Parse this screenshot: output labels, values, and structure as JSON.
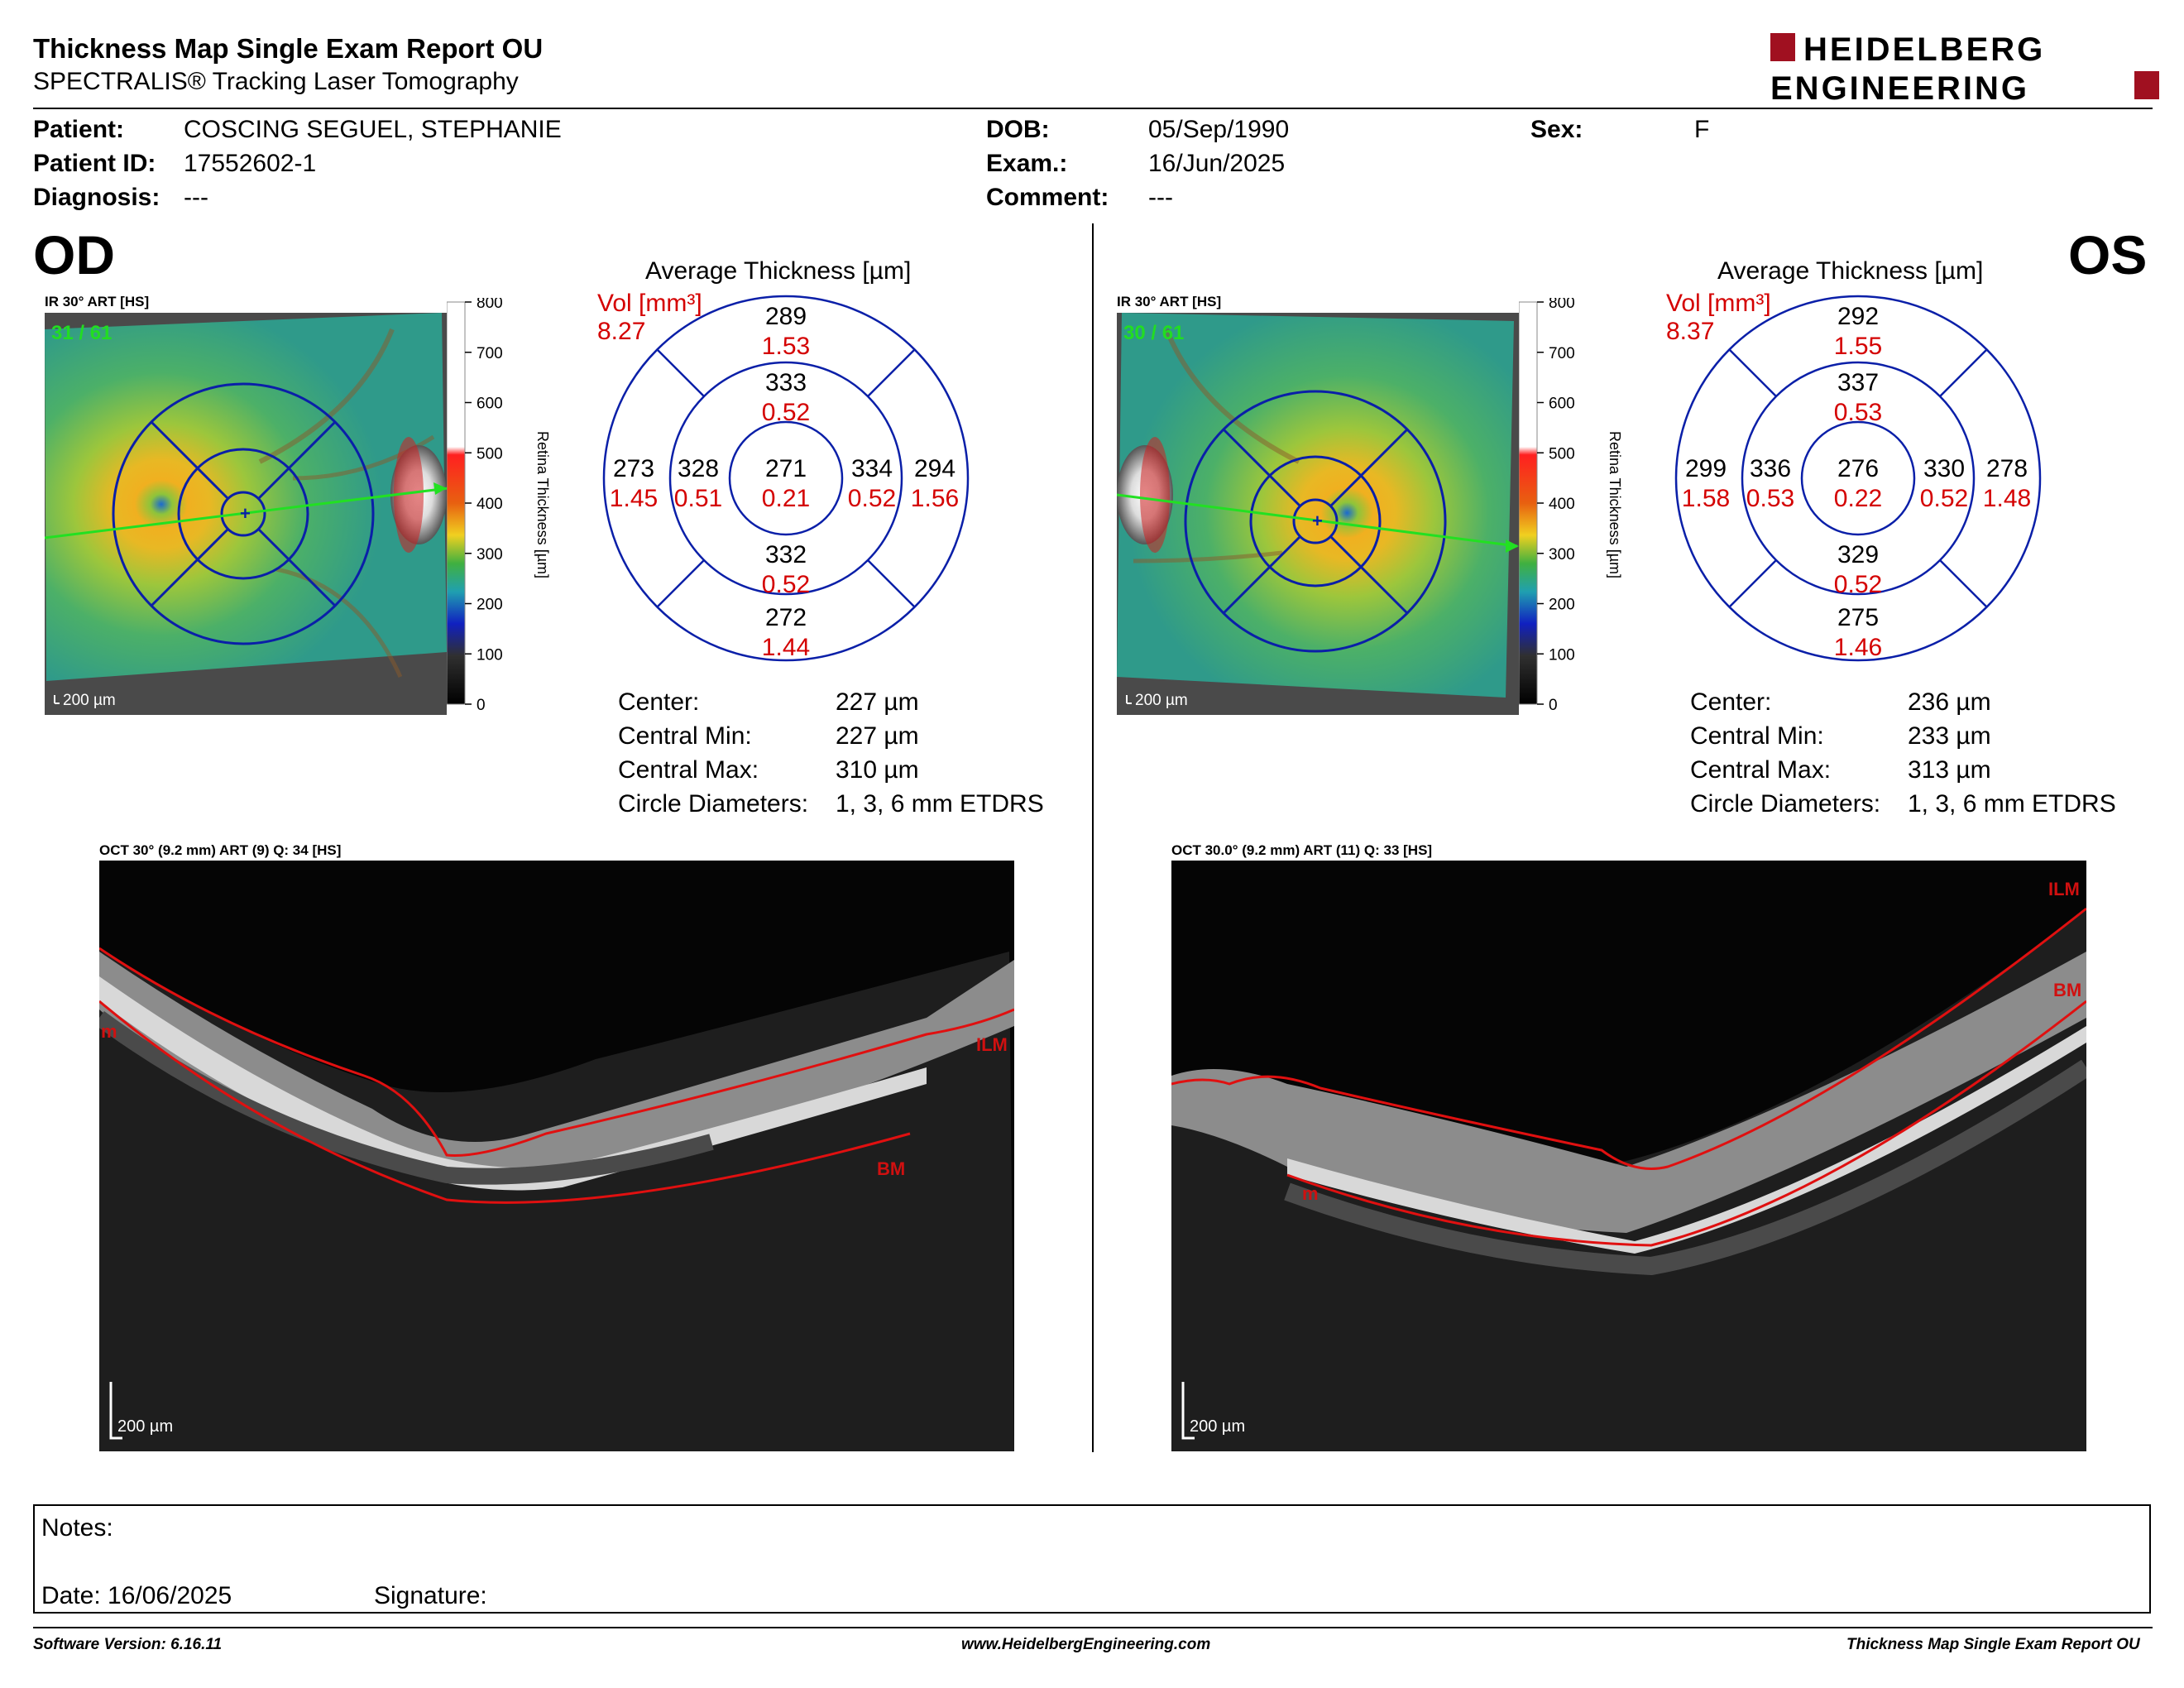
{
  "report": {
    "title": "Thickness Map Single Exam Report OU",
    "subtitle": "SPECTRALIS® Tracking Laser Tomography",
    "logo_line1": "HEIDELBERG",
    "logo_line2": "ENGINEERING"
  },
  "patient": {
    "patient_label": "Patient:",
    "patient_value": "COSCING SEGUEL, STEPHANIE",
    "id_label": "Patient ID:",
    "id_value": "17552602-1",
    "diagnosis_label": "Diagnosis:",
    "diagnosis_value": "---",
    "dob_label": "DOB:",
    "dob_value": "05/Sep/1990",
    "exam_label": "Exam.:",
    "exam_value": "16/Jun/2025",
    "comment_label": "Comment:",
    "comment_value": "---",
    "sex_label": "Sex:",
    "sex_value": "F"
  },
  "od": {
    "eye": "OD",
    "ir_label": "IR 30° ART [HS]",
    "frames": "31 / 61",
    "scale_bar": "200 µm",
    "colorbar_ticks": [
      "800",
      "700",
      "600",
      "500",
      "400",
      "300",
      "200",
      "100",
      "0"
    ],
    "colorbar_label": "Retina Thickness [µm]",
    "grid_title": "Average Thickness [µm]",
    "vol_label": "Vol [mm³]",
    "vol_total": "8.27",
    "outer_sup": {
      "t": "289",
      "v": "1.53"
    },
    "inner_sup": {
      "t": "333",
      "v": "0.52"
    },
    "outer_nas_left": {
      "t": "273",
      "v": "1.45"
    },
    "inner_left": {
      "t": "328",
      "v": "0.51"
    },
    "center": {
      "t": "271",
      "v": "0.21"
    },
    "inner_right": {
      "t": "334",
      "v": "0.52"
    },
    "outer_right": {
      "t": "294",
      "v": "1.56"
    },
    "inner_inf": {
      "t": "332",
      "v": "0.52"
    },
    "outer_inf": {
      "t": "272",
      "v": "1.44"
    },
    "stats": {
      "center_label": "Center:",
      "center_value": "227 µm",
      "min_label": "Central Min:",
      "min_value": "227 µm",
      "max_label": "Central Max:",
      "max_value": "310 µm",
      "diam_label": "Circle Diameters:",
      "diam_value": "1, 3, 6 mm ETDRS"
    },
    "oct_label": "OCT 30° (9.2 mm) ART (9) Q: 34 [HS]",
    "oct_scale": "200 µm",
    "ilm": "ILM",
    "bm": "BM",
    "m": "m"
  },
  "os": {
    "eye": "OS",
    "ir_label": "IR 30° ART [HS]",
    "frames": "30 / 61",
    "scale_bar": "200 µm",
    "colorbar_ticks": [
      "800",
      "700",
      "600",
      "500",
      "400",
      "300",
      "200",
      "100",
      "0"
    ],
    "colorbar_label": "Retina Thickness [µm]",
    "grid_title": "Average Thickness [µm]",
    "vol_label": "Vol [mm³]",
    "vol_total": "8.37",
    "outer_sup": {
      "t": "292",
      "v": "1.55"
    },
    "inner_sup": {
      "t": "337",
      "v": "0.53"
    },
    "outer_nas_left": {
      "t": "299",
      "v": "1.58"
    },
    "inner_left": {
      "t": "336",
      "v": "0.53"
    },
    "center": {
      "t": "276",
      "v": "0.22"
    },
    "inner_right": {
      "t": "330",
      "v": "0.52"
    },
    "outer_right": {
      "t": "278",
      "v": "1.48"
    },
    "inner_inf": {
      "t": "329",
      "v": "0.52"
    },
    "outer_inf": {
      "t": "275",
      "v": "1.46"
    },
    "stats": {
      "center_label": "Center:",
      "center_value": "236 µm",
      "min_label": "Central Min:",
      "min_value": "233 µm",
      "max_label": "Central Max:",
      "max_value": "313 µm",
      "diam_label": "Circle Diameters:",
      "diam_value": "1, 3, 6 mm ETDRS"
    },
    "oct_label": "OCT 30.0° (9.2 mm) ART (11) Q: 33 [HS]",
    "oct_scale": "200 µm",
    "ilm": "ILM",
    "bm": "BM",
    "m": "m"
  },
  "notes": {
    "notes_label": "Notes:",
    "date_label": "Date: 16/06/2025",
    "signature_label": "Signature:"
  },
  "footer": {
    "software": "Software Version: 6.16.11",
    "website": "www.HeidelbergEngineering.com",
    "report_name": "Thickness Map Single Exam Report OU"
  },
  "colors": {
    "grid_blue": "#0a1fa8",
    "volume_red": "#d40000",
    "logo_red": "#a01020",
    "scan_green": "#22e022",
    "label_green": "#22dd22"
  }
}
